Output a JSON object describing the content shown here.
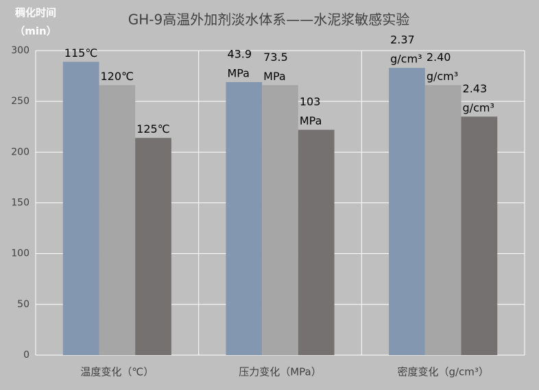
{
  "chart_data": {
    "type": "bar",
    "title": "GH-9高温外加剂淡水体系——水泥浆敏感实验",
    "y_label": [
      "稠化时间",
      "（min）"
    ],
    "categories": [
      "温度变化（℃）",
      "压力变化（MPa）",
      "密度变化（g/cm³）"
    ],
    "series": [
      {
        "color": "#8497b0",
        "values": [
          289,
          269,
          283
        ],
        "bar_labels": [
          [
            "115℃"
          ],
          [
            "43.9",
            "MPa"
          ],
          [
            "2.37",
            "g/cm³"
          ]
        ]
      },
      {
        "color": "#a6a6a6",
        "values": [
          266,
          266,
          266
        ],
        "bar_labels": [
          [
            "120℃"
          ],
          [
            "73.5",
            "MPa"
          ],
          [
            "2.40",
            "g/cm³"
          ]
        ]
      },
      {
        "color": "#757171",
        "values": [
          214,
          222,
          235
        ],
        "bar_labels": [
          [
            "125℃"
          ],
          [
            "103",
            "MPa"
          ],
          [
            "2.43",
            "g/cm³"
          ]
        ]
      }
    ],
    "ylim": [
      0,
      300
    ],
    "yticks": [
      0,
      50,
      100,
      150,
      200,
      250,
      300
    ],
    "grid": true
  }
}
